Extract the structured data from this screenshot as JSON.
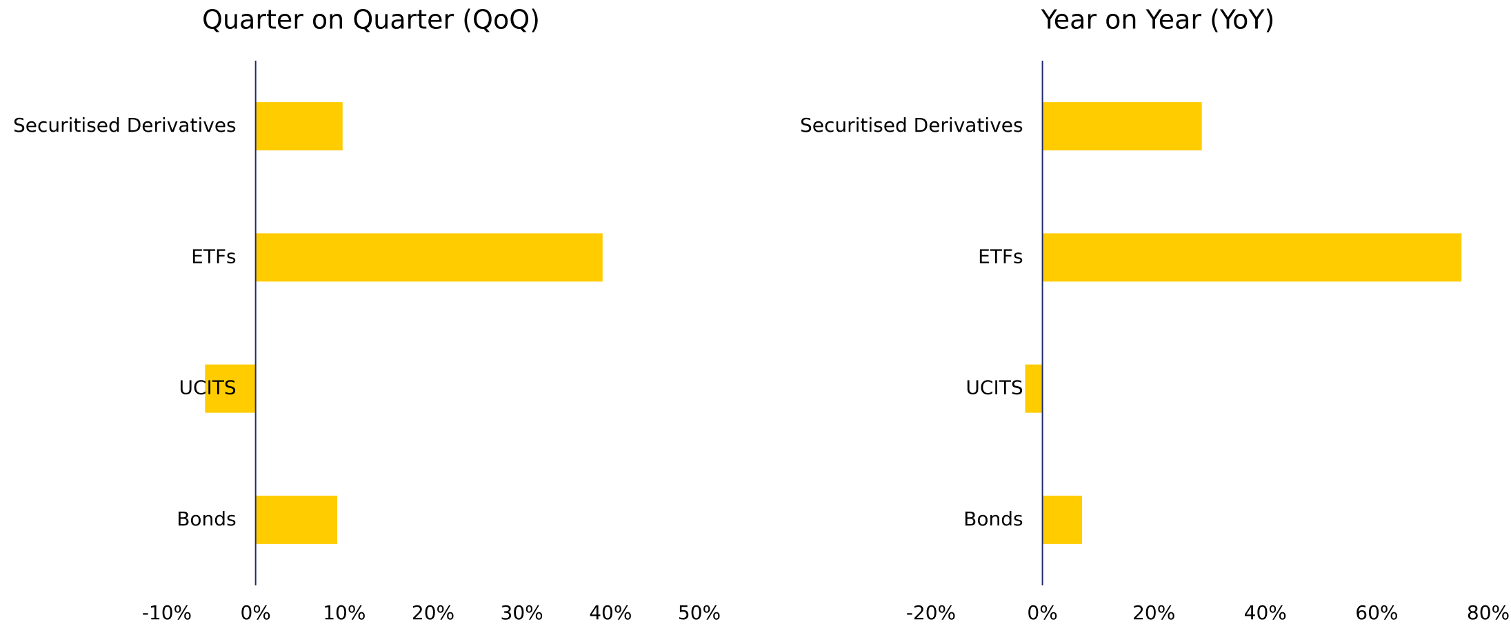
{
  "chart_data": [
    {
      "type": "bar",
      "orientation": "horizontal",
      "title": "Quarter on Quarter (QoQ)",
      "categories": [
        "Securitised Derivatives",
        "ETFs",
        "UCITS",
        "Bonds"
      ],
      "values": [
        9.8,
        39.1,
        -5.7,
        9.2
      ],
      "color": "#ffcc00",
      "axis_color": "#1f2a6b",
      "xlim": [
        -10,
        50
      ],
      "xticks": [
        {
          "value": -10,
          "label": "-10%"
        },
        {
          "value": 0,
          "label": "0%"
        },
        {
          "value": 10,
          "label": "10%"
        },
        {
          "value": 20,
          "label": "20%"
        },
        {
          "value": 30,
          "label": "30%"
        },
        {
          "value": 40,
          "label": "40%"
        },
        {
          "value": 50,
          "label": "50%"
        }
      ],
      "grid": false
    },
    {
      "type": "bar",
      "orientation": "horizontal",
      "title": "Year on Year (YoY)",
      "categories": [
        "Securitised Derivatives",
        "ETFs",
        "UCITS",
        "Bonds"
      ],
      "values": [
        28.6,
        75.2,
        -3.1,
        7.1
      ],
      "color": "#ffcc00",
      "axis_color": "#1f2a6b",
      "xlim": [
        -20,
        80
      ],
      "xticks": [
        {
          "value": -20,
          "label": "-20%"
        },
        {
          "value": 0,
          "label": "0%"
        },
        {
          "value": 20,
          "label": "20%"
        },
        {
          "value": 40,
          "label": "40%"
        },
        {
          "value": 60,
          "label": "60%"
        },
        {
          "value": 80,
          "label": "80%"
        }
      ],
      "grid": false
    }
  ]
}
